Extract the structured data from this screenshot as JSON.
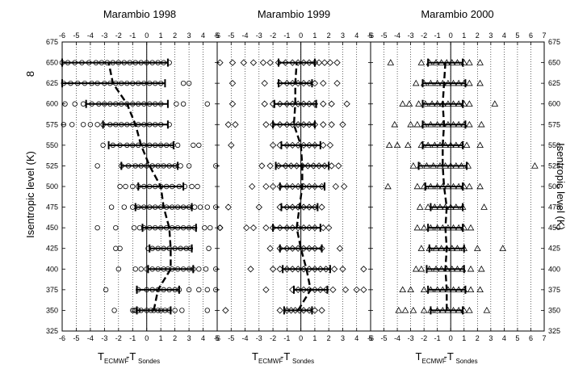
{
  "chart_data": {
    "type": "scatter",
    "ylabel_left": "Isentropic level (K)",
    "ylabel_right": "Isentropic level (K)",
    "left_axis_symbol": "8",
    "yticks": [
      325,
      350,
      375,
      400,
      425,
      450,
      475,
      500,
      525,
      550,
      575,
      600,
      625,
      650,
      675
    ],
    "ylim": [
      325,
      675
    ],
    "grid": "vertical dotted",
    "xlabel": {
      "main_left": "T",
      "sub_left": "ECMWF",
      "mid": "-T",
      "sub_right": "Sondes"
    },
    "panels": [
      {
        "title": "Marambio 1998",
        "marker": "circle",
        "xlim": [
          -6,
          5
        ],
        "xticks": [
          -6,
          -5,
          -4,
          -3,
          -2,
          -1,
          0,
          1,
          2,
          3,
          4,
          5
        ],
        "mean_profile": [
          {
            "level": 350,
            "mean": 0.5,
            "sd": 1.2
          },
          {
            "level": 375,
            "mean": 0.8,
            "sd": 1.5
          },
          {
            "level": 400,
            "mean": 1.7,
            "sd": 1.6
          },
          {
            "level": 425,
            "mean": 1.7,
            "sd": 1.5
          },
          {
            "level": 450,
            "mean": 1.6,
            "sd": 1.9
          },
          {
            "level": 475,
            "mean": 1.2,
            "sd": 2.0
          },
          {
            "level": 500,
            "mean": 1.0,
            "sd": 1.6
          },
          {
            "level": 525,
            "mean": 0.2,
            "sd": 2.0
          },
          {
            "level": 550,
            "mean": -0.4,
            "sd": 2.3
          },
          {
            "level": 575,
            "mean": -0.8,
            "sd": 2.3
          },
          {
            "level": 600,
            "mean": -1.4,
            "sd": 2.9
          },
          {
            "level": 625,
            "mean": -2.4,
            "sd": 3.7
          },
          {
            "level": 650,
            "mean": -2.7,
            "sd": 4.2
          }
        ],
        "points": [
          {
            "level": 350,
            "values": [
              -2.3,
              -1.0,
              -0.9,
              -0.8,
              -0.6,
              -0.4,
              0.0,
              0.3,
              0.5,
              0.8,
              1.0,
              1.3,
              1.6,
              2.0,
              2.5,
              4.3
            ]
          },
          {
            "level": 375,
            "values": [
              -2.9,
              -0.6,
              0.0,
              0.4,
              0.8,
              1.2,
              1.6,
              2.0,
              2.3,
              3.0,
              3.7,
              4.3,
              4.9
            ]
          },
          {
            "level": 400,
            "values": [
              -2.0,
              -0.8,
              -0.4,
              0.0,
              0.4,
              0.8,
              1.2,
              1.5,
              1.8,
              2.2,
              2.6,
              3.0,
              3.3,
              3.7,
              4.2,
              4.9
            ]
          },
          {
            "level": 425,
            "values": [
              -2.2,
              -1.9,
              0.1,
              0.4,
              0.8,
              1.2,
              1.6,
              2.0,
              2.4,
              2.8,
              3.1,
              4.4
            ]
          },
          {
            "level": 450,
            "values": [
              -3.5,
              -2.2,
              -0.9,
              -0.5,
              -0.2,
              0.2,
              0.6,
              1.0,
              1.4,
              1.8,
              2.2,
              2.6,
              3.0,
              3.4,
              4.1,
              4.5,
              5.2
            ]
          },
          {
            "level": 475,
            "values": [
              -2.5,
              -1.6,
              -1.0,
              -0.6,
              -0.2,
              0.2,
              0.6,
              1.0,
              1.4,
              1.8,
              2.2,
              2.6,
              3.0,
              3.4,
              3.8,
              4.3,
              4.9
            ]
          },
          {
            "level": 500,
            "values": [
              -1.9,
              -1.5,
              -1.0,
              -0.6,
              -0.2,
              0.2,
              0.6,
              1.0,
              1.4,
              1.8,
              2.3,
              2.7,
              3.2,
              3.6
            ]
          },
          {
            "level": 525,
            "values": [
              -3.5,
              -1.8,
              -1.3,
              -0.8,
              -0.4,
              0.0,
              0.4,
              0.8,
              1.2,
              1.6,
              2.0,
              2.4,
              3.0,
              4.9
            ]
          },
          {
            "level": 550,
            "values": [
              -3.1,
              -2.4,
              -1.9,
              -1.4,
              -1.0,
              -0.6,
              -0.2,
              0.2,
              0.6,
              1.0,
              1.4,
              1.8,
              2.2,
              3.3,
              3.7
            ]
          },
          {
            "level": 575,
            "values": [
              -5.9,
              -5.3,
              -4.5,
              -4.0,
              -3.5,
              -3.1,
              -2.6,
              -2.2,
              -1.8,
              -1.4,
              -1.0,
              -0.6,
              -0.2,
              0.2,
              0.6,
              1.0,
              1.6
            ]
          },
          {
            "level": 600,
            "values": [
              -5.8,
              -5.1,
              -4.5,
              -3.9,
              -3.4,
              -3.0,
              -2.6,
              -2.2,
              -1.8,
              -1.4,
              -1.0,
              -0.6,
              -0.2,
              0.2,
              0.6,
              1.0,
              2.1,
              2.6,
              4.3
            ]
          },
          {
            "level": 625,
            "values": [
              -5.9,
              -5.4,
              -4.9,
              -4.4,
              -3.9,
              -3.5,
              -3.0,
              -2.6,
              -2.2,
              -1.8,
              -1.4,
              -1.0,
              -0.6,
              -0.2,
              0.2,
              0.6,
              1.0,
              2.6,
              3.0
            ]
          },
          {
            "level": 650,
            "values": [
              -6.0,
              -5.6,
              -5.1,
              -4.6,
              -4.1,
              -3.6,
              -3.2,
              -2.8,
              -2.4,
              -2.0,
              -1.6,
              -1.2,
              -0.8,
              -0.4,
              0.0,
              0.4,
              0.8,
              1.2,
              1.6
            ]
          }
        ]
      },
      {
        "title": "Marambio 1999",
        "marker": "diamond",
        "xlim": [
          -6,
          5
        ],
        "xticks": [
          -6,
          -5,
          -4,
          -3,
          -2,
          -1,
          0,
          1,
          2,
          3,
          4,
          5
        ],
        "mean_profile": [
          {
            "level": 350,
            "mean": -0.2,
            "sd": 1.0
          },
          {
            "level": 375,
            "mean": 0.7,
            "sd": 1.2
          },
          {
            "level": 400,
            "mean": 0.4,
            "sd": 1.7
          },
          {
            "level": 425,
            "mean": 0.0,
            "sd": 1.5
          },
          {
            "level": 450,
            "mean": -0.3,
            "sd": 1.7
          },
          {
            "level": 475,
            "mean": -0.1,
            "sd": 1.3
          },
          {
            "level": 500,
            "mean": 0.1,
            "sd": 1.6
          },
          {
            "level": 525,
            "mean": 0.1,
            "sd": 1.9
          },
          {
            "level": 550,
            "mean": 0.0,
            "sd": 1.4
          },
          {
            "level": 575,
            "mean": -0.5,
            "sd": 1.5
          },
          {
            "level": 600,
            "mean": -0.4,
            "sd": 1.5
          },
          {
            "level": 625,
            "mean": -0.4,
            "sd": 1.2
          },
          {
            "level": 650,
            "mean": -0.3,
            "sd": 1.3
          }
        ],
        "points": [
          {
            "level": 350,
            "values": [
              -5.4,
              -1.5,
              -1.0,
              -0.7,
              -0.4,
              -0.1,
              0.2,
              0.6,
              1.0,
              1.5
            ]
          },
          {
            "level": 375,
            "values": [
              -2.5,
              -0.6,
              -0.2,
              0.2,
              0.6,
              1.0,
              1.4,
              1.8,
              2.3,
              3.2,
              4.0,
              4.5
            ]
          },
          {
            "level": 400,
            "values": [
              -3.6,
              -2.0,
              -1.5,
              -1.0,
              -0.6,
              -0.2,
              0.2,
              0.6,
              1.0,
              1.4,
              1.8,
              2.4,
              3.0,
              4.5
            ]
          },
          {
            "level": 425,
            "values": [
              -2.2,
              -1.5,
              -1.0,
              -0.6,
              -0.2,
              0.2,
              0.6,
              1.0,
              1.5,
              2.8
            ]
          },
          {
            "level": 450,
            "values": [
              -5.8,
              -3.9,
              -3.4,
              -2.5,
              -2.0,
              -1.5,
              -1.0,
              -0.6,
              -0.2,
              0.2,
              0.6,
              1.0,
              1.6,
              2.0
            ]
          },
          {
            "level": 475,
            "values": [
              -5.2,
              -3.0,
              -1.5,
              -1.0,
              -0.6,
              -0.2,
              0.2,
              0.6,
              1.0,
              1.5
            ]
          },
          {
            "level": 500,
            "values": [
              -3.5,
              -2.5,
              -2.0,
              -1.5,
              -1.0,
              -0.6,
              -0.2,
              0.2,
              0.6,
              1.0,
              1.5,
              2.5,
              3.1
            ]
          },
          {
            "level": 525,
            "values": [
              -2.8,
              -2.2,
              -1.6,
              -1.1,
              -0.7,
              -0.3,
              0.1,
              0.5,
              0.9,
              1.3,
              1.7,
              2.2,
              2.7
            ]
          },
          {
            "level": 550,
            "values": [
              -5.0,
              -2.0,
              -1.5,
              -1.0,
              -0.6,
              -0.2,
              0.2,
              0.6,
              1.0,
              1.6,
              2.1
            ]
          },
          {
            "level": 575,
            "values": [
              -5.2,
              -4.7,
              -2.5,
              -2.0,
              -1.5,
              -1.0,
              -0.6,
              -0.2,
              0.2,
              0.6,
              1.0,
              1.6,
              2.2,
              3.0
            ]
          },
          {
            "level": 600,
            "values": [
              -4.9,
              -2.6,
              -2.0,
              -1.5,
              -1.0,
              -0.6,
              -0.2,
              0.2,
              0.6,
              1.0,
              1.6,
              2.2,
              3.3
            ]
          },
          {
            "level": 625,
            "values": [
              -4.9,
              -2.6,
              -1.5,
              -1.0,
              -0.6,
              -0.2,
              0.2,
              0.6,
              1.0,
              1.6,
              2.6
            ]
          },
          {
            "level": 650,
            "values": [
              -5.8,
              -4.9,
              -4.1,
              -3.4,
              -2.7,
              -2.2,
              -1.6,
              -1.1,
              -0.6,
              -0.2,
              0.2,
              0.6,
              1.0,
              1.3,
              1.7,
              2.1,
              2.6
            ]
          }
        ]
      },
      {
        "title": "Marambio 2000",
        "marker": "triangle",
        "xlim": [
          -6,
          7
        ],
        "xticks": [
          -6,
          -5,
          -4,
          -3,
          -2,
          -1,
          0,
          1,
          2,
          3,
          4,
          5,
          6,
          7
        ],
        "mean_profile": [
          {
            "level": 350,
            "mean": -0.3,
            "sd": 1.2
          },
          {
            "level": 375,
            "mean": -0.3,
            "sd": 1.4
          },
          {
            "level": 400,
            "mean": -0.4,
            "sd": 1.4
          },
          {
            "level": 425,
            "mean": -0.3,
            "sd": 1.3
          },
          {
            "level": 450,
            "mean": -0.4,
            "sd": 1.3
          },
          {
            "level": 475,
            "mean": -0.3,
            "sd": 1.2
          },
          {
            "level": 500,
            "mean": -0.5,
            "sd": 1.4
          },
          {
            "level": 525,
            "mean": -0.6,
            "sd": 1.8
          },
          {
            "level": 550,
            "mean": -0.6,
            "sd": 1.5
          },
          {
            "level": 575,
            "mean": -0.5,
            "sd": 1.6
          },
          {
            "level": 600,
            "mean": -0.6,
            "sd": 1.5
          },
          {
            "level": 625,
            "mean": -0.5,
            "sd": 1.6
          },
          {
            "level": 650,
            "mean": -0.4,
            "sd": 1.3
          }
        ],
        "points": [
          {
            "level": 350,
            "values": [
              -3.9,
              -3.4,
              -2.8,
              -2.0,
              -1.5,
              -1.0,
              -0.6,
              -0.2,
              0.2,
              0.6,
              1.0,
              1.4,
              2.7
            ]
          },
          {
            "level": 375,
            "values": [
              -3.6,
              -3.0,
              -2.0,
              -1.5,
              -1.0,
              -0.6,
              -0.2,
              0.2,
              0.6,
              1.0,
              1.5,
              2.2
            ]
          },
          {
            "level": 400,
            "values": [
              -2.6,
              -2.2,
              -1.6,
              -1.1,
              -0.7,
              -0.3,
              0.1,
              0.5,
              0.9,
              1.5,
              2.3
            ]
          },
          {
            "level": 425,
            "values": [
              -2.2,
              -1.6,
              -1.1,
              -0.7,
              -0.3,
              0.1,
              0.5,
              1.0,
              2.0,
              3.9
            ]
          },
          {
            "level": 450,
            "values": [
              -2.5,
              -2.0,
              -1.5,
              -1.0,
              -0.6,
              -0.2,
              0.2,
              0.6,
              1.0,
              1.5
            ]
          },
          {
            "level": 475,
            "values": [
              -2.3,
              -1.7,
              -1.2,
              -0.8,
              -0.4,
              0.0,
              0.4,
              0.9,
              2.5
            ]
          },
          {
            "level": 500,
            "values": [
              -4.7,
              -2.5,
              -2.0,
              -1.5,
              -1.0,
              -0.6,
              -0.2,
              0.2,
              0.6,
              1.0,
              1.4,
              2.2
            ]
          },
          {
            "level": 525,
            "values": [
              -2.8,
              -2.3,
              -1.8,
              -1.3,
              -0.8,
              -0.4,
              0.0,
              0.4,
              0.8,
              1.3,
              6.3
            ]
          },
          {
            "level": 550,
            "values": [
              -4.6,
              -4.0,
              -3.2,
              -2.2,
              -1.7,
              -1.2,
              -0.8,
              -0.4,
              0.0,
              0.4,
              0.8,
              1.2,
              2.2
            ]
          },
          {
            "level": 575,
            "values": [
              -4.2,
              -3.0,
              -2.5,
              -2.0,
              -1.5,
              -1.0,
              -0.6,
              -0.2,
              0.2,
              0.6,
              1.0,
              1.4,
              2.3
            ]
          },
          {
            "level": 600,
            "values": [
              -3.6,
              -3.1,
              -2.4,
              -1.9,
              -1.4,
              -1.0,
              -0.6,
              -0.2,
              0.2,
              0.6,
              1.0,
              1.4,
              3.3
            ]
          },
          {
            "level": 625,
            "values": [
              -2.6,
              -2.0,
              -1.5,
              -1.0,
              -0.6,
              -0.2,
              0.2,
              0.6,
              1.0,
              1.4,
              2.2
            ]
          },
          {
            "level": 650,
            "values": [
              -4.5,
              -2.2,
              -1.6,
              -1.1,
              -0.7,
              -0.3,
              0.1,
              0.5,
              1.0,
              1.4,
              2.2
            ]
          }
        ]
      }
    ]
  }
}
